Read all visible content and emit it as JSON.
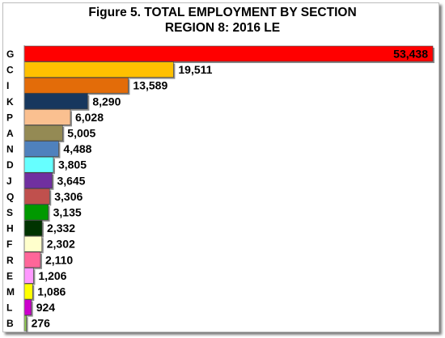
{
  "chart_data": {
    "type": "bar",
    "orientation": "horizontal",
    "title": "Figure 5. TOTAL  EMPLOYMENT BY SECTION",
    "subtitle": "REGION 8: 2016 LE",
    "xlabel": "",
    "ylabel": "",
    "grid": false,
    "legend": "none",
    "xlim": [
      0,
      53438
    ],
    "categories": [
      "G",
      "C",
      "I",
      "K",
      "P",
      "A",
      "N",
      "D",
      "J",
      "Q",
      "S",
      "H",
      "F",
      "R",
      "E",
      "M",
      "L",
      "B"
    ],
    "values": [
      53438,
      19511,
      13589,
      8290,
      6028,
      5005,
      4488,
      3805,
      3645,
      3306,
      3135,
      2332,
      2302,
      2110,
      1206,
      1086,
      924,
      276
    ],
    "value_labels": [
      "53,438",
      "19,511",
      "13,589",
      "8,290",
      "6,028",
      "5,005",
      "4,488",
      "3,805",
      "3,645",
      "3,306",
      "3,135",
      "2,332",
      "2,302",
      "2,110",
      "1,206",
      "1,086",
      "924",
      "276"
    ],
    "colors": [
      "#ff0000",
      "#ffc000",
      "#e36c09",
      "#17375e",
      "#fac090",
      "#948a54",
      "#4f81bd",
      "#66ffff",
      "#7030a0",
      "#c0504d",
      "#009900",
      "#003300",
      "#ffffcc",
      "#ff6699",
      "#ff99ff",
      "#ffff00",
      "#cc00cc",
      "#92d050"
    ]
  }
}
